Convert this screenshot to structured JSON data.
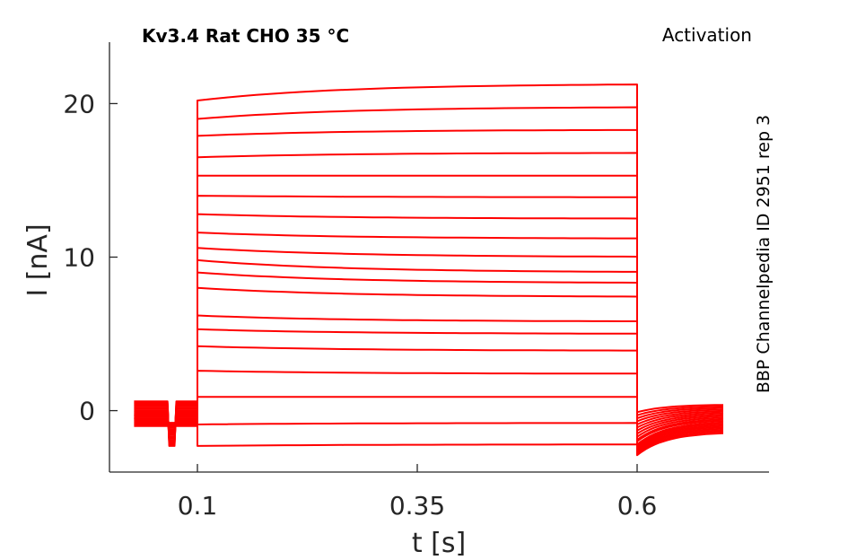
{
  "chart_data": {
    "type": "line",
    "title": "Kv3.4  Rat  CHO  35 °C",
    "corner_label": "Activation",
    "side_label": "BBP Channelpedia ID 2951 rep 3",
    "xlabel": "t [s]",
    "ylabel": "I [nA]",
    "xlim": [
      0.0,
      0.75
    ],
    "ylim": [
      -4,
      24
    ],
    "xticks": [
      0.1,
      0.35,
      0.6
    ],
    "xtick_labels": [
      "0.1",
      "0.35",
      "0.6"
    ],
    "yticks": [
      0,
      10,
      20
    ],
    "ytick_labels": [
      "0",
      "10",
      "20"
    ],
    "grid": false,
    "legend": "none",
    "line_color": "#ff0000",
    "protocol": {
      "pre_start": 0.028,
      "step_on": 0.1,
      "step_off": 0.6,
      "end": 0.698,
      "dip_start": 0.066,
      "dip_end": 0.076
    },
    "series": [
      {
        "holding": 0.6,
        "dip": -2.3,
        "step_start": 20.2,
        "step_end": 21.3,
        "tail_start": -0.1,
        "tail_end": 0.4
      },
      {
        "holding": 0.5,
        "dip": -2.2,
        "step_start": 19.0,
        "step_end": 19.8,
        "tail_start": -0.3,
        "tail_end": 0.3
      },
      {
        "holding": 0.4,
        "dip": -2.1,
        "step_start": 17.9,
        "step_end": 18.3,
        "tail_start": -0.5,
        "tail_end": 0.2
      },
      {
        "holding": 0.3,
        "dip": -2.0,
        "step_start": 16.5,
        "step_end": 16.8,
        "tail_start": -0.7,
        "tail_end": 0.1
      },
      {
        "holding": 0.2,
        "dip": -1.9,
        "step_start": 15.3,
        "step_end": 15.3,
        "tail_start": -0.9,
        "tail_end": 0.0
      },
      {
        "holding": 0.1,
        "dip": -1.8,
        "step_start": 14.0,
        "step_end": 13.9,
        "tail_start": -1.1,
        "tail_end": -0.1
      },
      {
        "holding": 0.0,
        "dip": -1.7,
        "step_start": 12.8,
        "step_end": 12.5,
        "tail_start": -1.3,
        "tail_end": -0.2
      },
      {
        "holding": -0.1,
        "dip": -1.6,
        "step_start": 11.6,
        "step_end": 11.2,
        "tail_start": -1.5,
        "tail_end": -0.3
      },
      {
        "holding": -0.2,
        "dip": -1.5,
        "step_start": 10.6,
        "step_end": 10.0,
        "tail_start": -1.7,
        "tail_end": -0.4
      },
      {
        "holding": -0.3,
        "dip": -1.4,
        "step_start": 9.8,
        "step_end": 9.0,
        "tail_start": -1.9,
        "tail_end": -0.5
      },
      {
        "holding": -0.3,
        "dip": -1.3,
        "step_start": 9.0,
        "step_end": 8.3,
        "tail_start": -2.0,
        "tail_end": -0.6
      },
      {
        "holding": -0.4,
        "dip": -1.2,
        "step_start": 8.0,
        "step_end": 7.4,
        "tail_start": -2.2,
        "tail_end": -0.7
      },
      {
        "holding": -0.5,
        "dip": -1.1,
        "step_start": 6.2,
        "step_end": 5.8,
        "tail_start": -2.3,
        "tail_end": -0.8
      },
      {
        "holding": -0.5,
        "dip": -1.0,
        "step_start": 5.3,
        "step_end": 5.0,
        "tail_start": -2.4,
        "tail_end": -0.9
      },
      {
        "holding": -0.6,
        "dip": -0.9,
        "step_start": 4.2,
        "step_end": 3.9,
        "tail_start": -2.5,
        "tail_end": -1.0
      },
      {
        "holding": -0.7,
        "dip": -0.8,
        "step_start": 2.6,
        "step_end": 2.4,
        "tail_start": -2.6,
        "tail_end": -1.1
      },
      {
        "holding": -0.8,
        "dip": -0.8,
        "step_start": 0.9,
        "step_end": 0.9,
        "tail_start": -2.7,
        "tail_end": -1.2
      },
      {
        "holding": -0.9,
        "dip": -0.9,
        "step_start": -0.9,
        "step_end": -0.8,
        "tail_start": -2.8,
        "tail_end": -1.3
      },
      {
        "holding": -1.0,
        "dip": -1.0,
        "step_start": -2.3,
        "step_end": -2.2,
        "tail_start": -2.9,
        "tail_end": -1.4
      }
    ]
  }
}
